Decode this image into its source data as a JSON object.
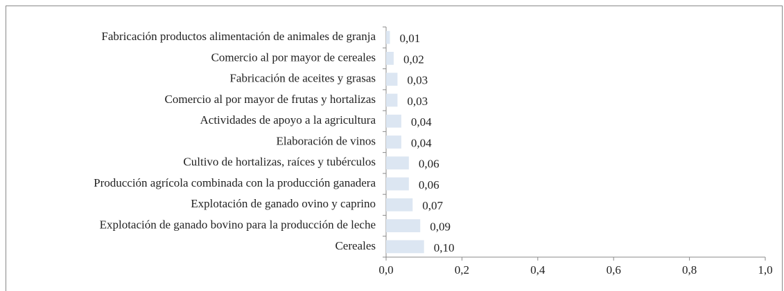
{
  "chart_data": {
    "type": "barh",
    "categories": [
      "Fabricación productos alimentación de animales de granja",
      "Comercio al por mayor de cereales ",
      "Fabricación de aceites y grasas",
      "Comercio al por mayor de frutas y hortalizas",
      "Actividades de apoyo a la agricultura",
      "Elaboración de vinos",
      "Cultivo de hortalizas, raíces y tubérculos",
      "Producción agrícola combinada con la producción ganadera",
      "Explotación de ganado ovino y caprino",
      "Explotación de ganado bovino para la producción de leche",
      "Cereales"
    ],
    "values": [
      0.01,
      0.02,
      0.03,
      0.03,
      0.04,
      0.04,
      0.06,
      0.06,
      0.07,
      0.09,
      0.1
    ],
    "value_labels": [
      "0,01",
      "0,02",
      "0,03",
      "0,03",
      "0,04",
      "0,04",
      "0,06",
      "0,06",
      "0,07",
      "0,09",
      "0,10"
    ],
    "color": "#dce6f2",
    "xlim": [
      0,
      1
    ],
    "xticks": [
      {
        "value": 0,
        "label": "0,0"
      },
      {
        "value": 0.2,
        "label": "0,2"
      },
      {
        "value": 0.4,
        "label": "0,4"
      },
      {
        "value": 0.6,
        "label": "0,6"
      },
      {
        "value": 0.8,
        "label": "0,8"
      },
      {
        "value": 1,
        "label": "1,0"
      }
    ],
    "grid": false
  }
}
